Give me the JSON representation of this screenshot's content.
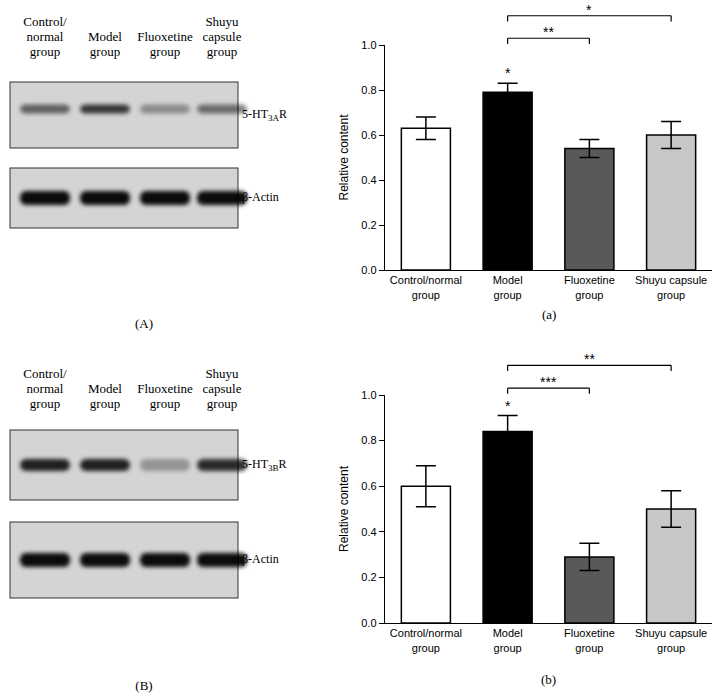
{
  "blots": [
    {
      "panel": "(A)",
      "lanes": [
        "Control/normal group",
        "Model group",
        "Fluoxetine group",
        "Shuyu capsule group"
      ],
      "bands": [
        "5-HT3AR",
        "β-Actin"
      ]
    },
    {
      "panel": "(B)",
      "lanes": [
        "Control/normal group",
        "Model group",
        "Fluoxetine group",
        "Shuyu capsule group"
      ],
      "bands": [
        "5-HT3BR",
        "β-Actin"
      ]
    }
  ],
  "chart_data": [
    {
      "type": "bar",
      "panel": "(a)",
      "categories": [
        "Control/normal group",
        "Model group",
        "Fluoxetine group",
        "Shuyu capsule group"
      ],
      "values": [
        0.63,
        0.79,
        0.54,
        0.6
      ],
      "errors": [
        0.05,
        0.04,
        0.04,
        0.06
      ],
      "significance": [
        null,
        "*",
        null,
        null
      ],
      "comparisons": [
        {
          "pair": [
            "Model group",
            "Fluoxetine group"
          ],
          "label": "**"
        },
        {
          "pair": [
            "Model group",
            "Shuyu capsule group"
          ],
          "label": "*"
        }
      ],
      "colors": [
        "#ffffff",
        "#000000",
        "#595959",
        "#c8c8c8"
      ],
      "y_label": "Relative content",
      "ylim": [
        0,
        1.0
      ],
      "yticks": [
        {
          "value": 0,
          "label": "0.0"
        },
        {
          "value": 0.2,
          "label": "0.2"
        },
        {
          "value": 0.4,
          "label": "0.4"
        },
        {
          "value": 0.6,
          "label": "0.6"
        },
        {
          "value": 0.8,
          "label": "0.8"
        },
        {
          "value": 1.0,
          "label": "1.0"
        }
      ],
      "grid": false
    },
    {
      "type": "bar",
      "panel": "(b)",
      "categories": [
        "Control/normal group",
        "Model group",
        "Fluoxetine group",
        "Shuyu capsule group"
      ],
      "values": [
        0.6,
        0.84,
        0.29,
        0.5
      ],
      "errors": [
        0.09,
        0.07,
        0.06,
        0.08
      ],
      "significance": [
        null,
        "*",
        null,
        null
      ],
      "comparisons": [
        {
          "pair": [
            "Model group",
            "Fluoxetine group"
          ],
          "label": "***"
        },
        {
          "pair": [
            "Model group",
            "Shuyu capsule group"
          ],
          "label": "**"
        }
      ],
      "colors": [
        "#ffffff",
        "#000000",
        "#595959",
        "#c8c8c8"
      ],
      "y_label": "Relative content",
      "ylim": [
        0,
        1.0
      ],
      "yticks": [
        {
          "value": 0,
          "label": "0.0"
        },
        {
          "value": 0.2,
          "label": "0.2"
        },
        {
          "value": 0.4,
          "label": "0.4"
        },
        {
          "value": 0.6,
          "label": "0.6"
        },
        {
          "value": 0.8,
          "label": "0.8"
        },
        {
          "value": 1.0,
          "label": "1.0"
        }
      ],
      "grid": false
    }
  ]
}
